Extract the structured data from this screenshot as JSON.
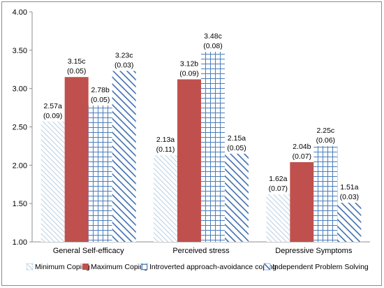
{
  "chart_data": {
    "type": "bar",
    "title": "",
    "xlabel": "",
    "ylabel": "",
    "ylim": [
      1.0,
      4.0
    ],
    "yticks": [
      "1.00",
      "1.50",
      "2.00",
      "2.50",
      "3.00",
      "3.50",
      "4.00"
    ],
    "categories": [
      "General Self-efficacy",
      "Perceived stress",
      "Depressive Symptoms"
    ],
    "grid": false,
    "legend_position": "bottom",
    "series": [
      {
        "name": "Minimum Coping",
        "pattern": "diagonal-fine",
        "color": "#a6c3dc",
        "values": [
          2.57,
          2.13,
          1.62
        ],
        "labels": [
          "2.57a",
          "2.13a",
          "1.62a"
        ],
        "sd": [
          "(0.09)",
          "(0.11)",
          "(0.07)"
        ]
      },
      {
        "name": "Maximum Coping",
        "pattern": "solid",
        "color": "#c0504d",
        "values": [
          3.15,
          3.12,
          2.04
        ],
        "labels": [
          "3.15c",
          "3.12b",
          "2.04b"
        ],
        "sd": [
          "(0.05)",
          "(0.09)",
          "(0.07)"
        ]
      },
      {
        "name": "Introverted approach-avoidance coping",
        "pattern": "grid",
        "color": "#4a7ebb",
        "values": [
          2.78,
          3.48,
          2.25
        ],
        "labels": [
          "2.78b",
          "3.48c",
          "2.25c"
        ],
        "sd": [
          "(0.05)",
          "(0.08)",
          "(0.06)"
        ]
      },
      {
        "name": "Independent Problem Solving",
        "pattern": "diagonal-wide",
        "color": "#3f6fb0",
        "values": [
          3.23,
          2.15,
          1.51
        ],
        "labels": [
          "3.23c",
          "2.15a",
          "1.51a"
        ],
        "sd": [
          "(0.03)",
          "(0.05)",
          "(0.03)"
        ]
      }
    ]
  }
}
